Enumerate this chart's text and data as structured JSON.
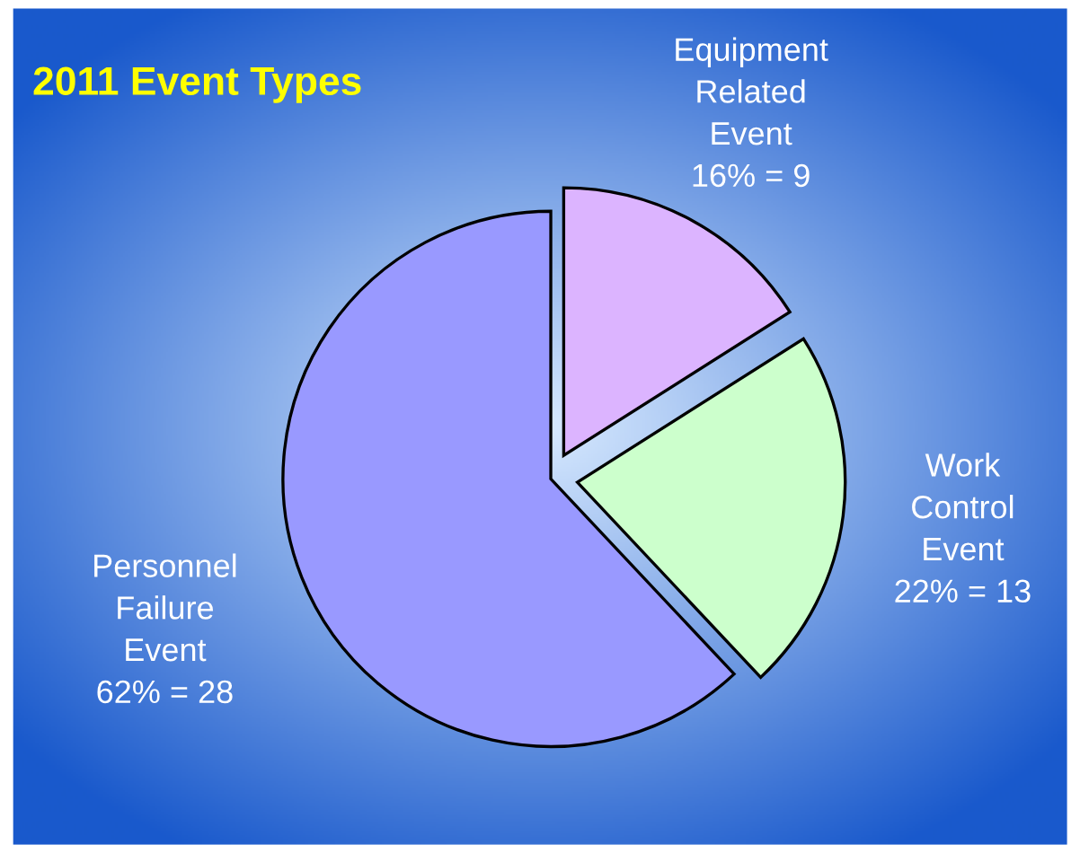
{
  "chart_data": {
    "type": "pie",
    "title": "2011 Event Types",
    "categories": [
      "Equipment\nRelated\nEvent",
      "Work\nControl\nEvent",
      "Personnel\nFailure\nEvent"
    ],
    "values": [
      16,
      22,
      62
    ],
    "value_labels": [
      "16% = 9",
      "22% = 13",
      "62% = 28"
    ],
    "colors": [
      "#dcb4ff",
      "#ccffcc",
      "#9999ff"
    ]
  }
}
